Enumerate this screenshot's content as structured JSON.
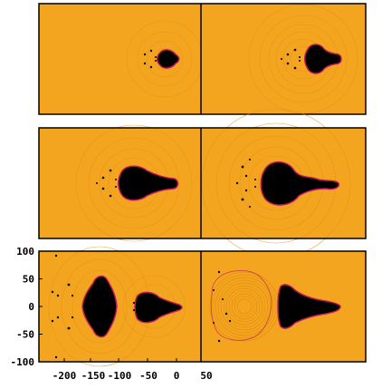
{
  "figure": {
    "y_ticks": [
      "100",
      "50",
      "0",
      "-50",
      "-100"
    ],
    "x_ticks": [
      "-200",
      "-150",
      "-100",
      "-50",
      "0",
      "50"
    ],
    "colors": {
      "background": "#f4a51f",
      "blob": "#000000",
      "rim": "#c2185b",
      "ripple": "#e08a10",
      "frame": "#000000"
    }
  }
}
